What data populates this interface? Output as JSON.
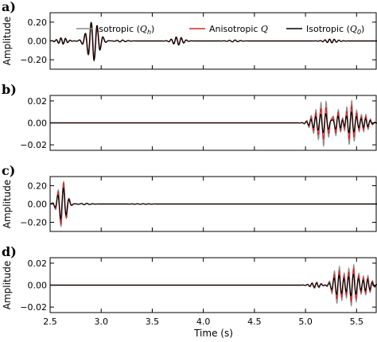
{
  "chart_data": {
    "type": "line",
    "xlabel": "Time (s)",
    "x_ticks": [
      "2.5",
      "3.0",
      "3.5",
      "4.0",
      "4.5",
      "5.0",
      "5.5"
    ],
    "xlim": [
      2.5,
      5.7
    ],
    "legend": {
      "placement": "top",
      "entries": [
        {
          "label": "Isotropic (",
          "sym": "Q",
          "sub": "h",
          "tail": ")",
          "color": "#8c8c8c"
        },
        {
          "label": "Anisotropic ",
          "sym": "Q",
          "sub": "",
          "tail": "",
          "color": "#d62728"
        },
        {
          "label": "Isotropic (",
          "sym": "Q",
          "sub": "0",
          "tail": ")",
          "color": "#000000"
        }
      ]
    },
    "panels": [
      {
        "letter": "a)",
        "ylabel": "Amplitude",
        "ylim": [
          -0.3,
          0.3
        ],
        "y_ticks": [
          -0.2,
          0.0,
          0.2
        ],
        "y_tick_labels": [
          "−0.20",
          "0.00",
          "0.20"
        ],
        "wavelets": [
          {
            "t": 2.62,
            "amp": [
              -0.03,
              -0.025,
              -0.035
            ],
            "f": 22,
            "w": 0.045
          },
          {
            "t": 2.92,
            "amp": [
              -0.2,
              -0.2,
              -0.21
            ],
            "f": 17,
            "w": 0.055
          },
          {
            "t": 3.2,
            "amp": [
              0.01,
              0.01,
              0.01
            ],
            "f": 18,
            "w": 0.05
          },
          {
            "t": 3.75,
            "amp": [
              -0.04,
              -0.035,
              -0.045
            ],
            "f": 20,
            "w": 0.05
          },
          {
            "t": 4.3,
            "amp": [
              0.01,
              0.01,
              0.01
            ],
            "f": 18,
            "w": 0.05
          },
          {
            "t": 5.25,
            "amp": [
              -0.02,
              -0.02,
              -0.02
            ],
            "f": 22,
            "w": 0.06
          }
        ]
      },
      {
        "letter": "b)",
        "ylabel": "",
        "ylim": [
          -0.025,
          0.025
        ],
        "y_ticks": [
          -0.02,
          0.0,
          0.02
        ],
        "y_tick_labels": [
          "−0.02",
          "0.00",
          "0.02"
        ],
        "wavelets": [
          {
            "t": 5.09,
            "amp": [
              0.008,
              0.006,
              0.004
            ],
            "f": 22,
            "w": 0.05
          },
          {
            "t": 5.19,
            "amp": [
              0.021,
              0.015,
              0.009
            ],
            "f": 20,
            "w": 0.05
          },
          {
            "t": 5.31,
            "amp": [
              0.014,
              0.011,
              0.007
            ],
            "f": 20,
            "w": 0.05
          },
          {
            "t": 5.44,
            "amp": [
              0.021,
              0.016,
              0.01
            ],
            "f": 20,
            "w": 0.05
          },
          {
            "t": 5.58,
            "amp": [
              0.008,
              0.006,
              0.004
            ],
            "f": 22,
            "w": 0.045
          }
        ]
      },
      {
        "letter": "c)",
        "ylabel": "Amplitude",
        "ylim": [
          -0.3,
          0.3
        ],
        "y_ticks": [
          -0.2,
          0.0,
          0.2
        ],
        "y_tick_labels": [
          "−0.20",
          "0.00",
          "0.20"
        ],
        "wavelets": [
          {
            "t": 2.62,
            "amp": [
              0.26,
              0.24,
              0.18
            ],
            "f": 18,
            "w": 0.04
          },
          {
            "t": 2.85,
            "amp": [
              0.008,
              0.008,
              0.008
            ],
            "f": 18,
            "w": 0.05
          },
          {
            "t": 3.4,
            "amp": [
              0.004,
              0.004,
              0.004
            ],
            "f": 18,
            "w": 0.06
          }
        ]
      },
      {
        "letter": "d)",
        "ylabel": "Amplitude",
        "ylim": [
          -0.025,
          0.025
        ],
        "y_ticks": [
          -0.02,
          0.0,
          0.02
        ],
        "y_tick_labels": [
          "−0.02",
          "0.00",
          "0.02"
        ],
        "wavelets": [
          {
            "t": 5.1,
            "amp": [
              0.003,
              0.0025,
              0.002
            ],
            "f": 22,
            "w": 0.05
          },
          {
            "t": 5.32,
            "amp": [
              0.017,
              0.013,
              0.009
            ],
            "f": 20,
            "w": 0.05
          },
          {
            "t": 5.46,
            "amp": [
              0.019,
              0.015,
              0.01
            ],
            "f": 20,
            "w": 0.05
          },
          {
            "t": 5.6,
            "amp": [
              0.009,
              0.007,
              0.005
            ],
            "f": 22,
            "w": 0.045
          }
        ]
      }
    ]
  }
}
